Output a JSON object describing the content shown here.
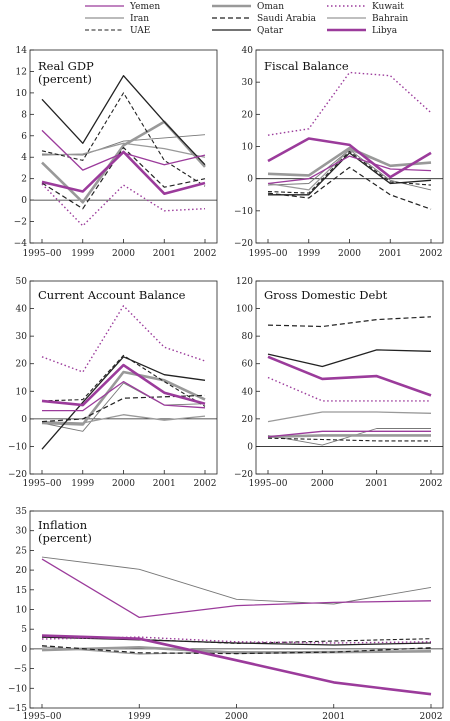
{
  "colors": {
    "yemen": "#9b3b9b",
    "iran": "#777777",
    "uae": "#222222",
    "oman": "#999999",
    "saudi": "#222222",
    "qatar": "#222222",
    "kuwait": "#9b3b9b",
    "bahrain": "#999999",
    "libya": "#9b3b9b"
  },
  "legend": [
    {
      "key": "yemen",
      "label": "Yemen"
    },
    {
      "key": "oman",
      "label": "Oman"
    },
    {
      "key": "kuwait",
      "label": "Kuwait"
    },
    {
      "key": "iran",
      "label": "Iran"
    },
    {
      "key": "saudi",
      "label": "Saudi Arabia"
    },
    {
      "key": "bahrain",
      "label": "Bahrain"
    },
    {
      "key": "uae",
      "label": "UAE"
    },
    {
      "key": "qatar",
      "label": "Qatar"
    },
    {
      "key": "libya",
      "label": "Libya"
    }
  ],
  "chart_data": [
    {
      "type": "line",
      "title": "Real GDP\n(percent)",
      "x": [
        "1995–00",
        "1999",
        "2000",
        "2001",
        "2002"
      ],
      "ylim": [
        -4,
        14
      ],
      "yticks": [
        -4,
        -2,
        0,
        2,
        4,
        6,
        8,
        10,
        12,
        14
      ],
      "series": [
        {
          "name": "Yemen",
          "key": "yemen",
          "values": [
            6.5,
            2.8,
            4.4,
            3.3,
            4.2
          ]
        },
        {
          "name": "Iran",
          "key": "iran",
          "values": [
            4.3,
            4.2,
            5.5,
            5.8,
            6.1
          ]
        },
        {
          "name": "UAE",
          "key": "uae",
          "values": [
            4.6,
            3.7,
            10.0,
            3.7,
            1.3
          ]
        },
        {
          "name": "Oman",
          "key": "oman",
          "values": [
            3.5,
            -0.2,
            5.1,
            7.3,
            3.1
          ]
        },
        {
          "name": "Saudi Arabia",
          "key": "saudi",
          "values": [
            1.6,
            -0.8,
            4.9,
            1.2,
            2.0
          ]
        },
        {
          "name": "Qatar",
          "key": "qatar",
          "values": [
            9.4,
            5.3,
            11.6,
            7.3,
            3.3
          ]
        },
        {
          "name": "Kuwait",
          "key": "kuwait",
          "values": [
            1.5,
            -2.4,
            1.4,
            -1.0,
            -0.8
          ]
        },
        {
          "name": "Bahrain",
          "key": "bahrain",
          "values": [
            4.2,
            4.3,
            5.3,
            4.8,
            4.0
          ]
        },
        {
          "name": "Libya",
          "key": "libya",
          "values": [
            1.7,
            0.8,
            4.5,
            0.6,
            1.6
          ]
        }
      ]
    },
    {
      "type": "line",
      "title": "Fiscal Balance",
      "x": [
        "1995–00",
        "1999",
        "2000",
        "2001",
        "2002"
      ],
      "ylim": [
        -20,
        40
      ],
      "yticks": [
        -20,
        -10,
        0,
        10,
        20,
        30,
        40
      ],
      "series": [
        {
          "name": "Yemen",
          "key": "yemen",
          "values": [
            -1.5,
            0.0,
            7.0,
            3.0,
            2.5
          ]
        },
        {
          "name": "Iran",
          "key": "iran",
          "values": [
            -2.0,
            -1.5,
            9.0,
            -0.5,
            -3.5
          ]
        },
        {
          "name": "UAE",
          "key": "uae",
          "values": [
            -4.0,
            -4.5,
            8.5,
            -1.0,
            -2.0
          ]
        },
        {
          "name": "Oman",
          "key": "oman",
          "values": [
            1.5,
            1.0,
            9.5,
            4.0,
            5.0
          ]
        },
        {
          "name": "Saudi Arabia",
          "key": "saudi",
          "values": [
            -4.5,
            -6.0,
            3.5,
            -5.0,
            -9.5
          ]
        },
        {
          "name": "Qatar",
          "key": "qatar",
          "values": [
            -5.0,
            -5.0,
            8.0,
            -1.5,
            -0.5
          ]
        },
        {
          "name": "Kuwait",
          "key": "kuwait",
          "values": [
            13.5,
            15.5,
            33.0,
            32.0,
            20.5
          ]
        },
        {
          "name": "Bahrain",
          "key": "bahrain",
          "values": [
            -1.5,
            -3.5,
            9.0,
            4.0,
            5.0
          ]
        },
        {
          "name": "Libya",
          "key": "libya",
          "values": [
            5.5,
            12.5,
            10.5,
            0.5,
            8.0
          ]
        }
      ]
    },
    {
      "type": "line",
      "title": "Current Account Balance",
      "x": [
        "1995–00",
        "1999",
        "2000",
        "2001",
        "2002"
      ],
      "ylim": [
        -20,
        50
      ],
      "yticks": [
        -20,
        -10,
        0,
        10,
        20,
        30,
        40,
        50
      ],
      "series": [
        {
          "name": "Yemen",
          "key": "yemen",
          "values": [
            3.0,
            3.0,
            13.5,
            5.0,
            4.0
          ]
        },
        {
          "name": "Iran",
          "key": "iran",
          "values": [
            -1.5,
            -4.5,
            13.0,
            5.0,
            5.5
          ]
        },
        {
          "name": "UAE",
          "key": "uae",
          "values": [
            6.5,
            7.0,
            23.0,
            13.5,
            4.5
          ]
        },
        {
          "name": "Oman",
          "key": "oman",
          "values": [
            -1.5,
            -2.0,
            17.0,
            14.0,
            7.0
          ]
        },
        {
          "name": "Saudi Arabia",
          "key": "saudi",
          "values": [
            -1.0,
            0.0,
            7.5,
            8.0,
            8.5
          ]
        },
        {
          "name": "Qatar",
          "key": "qatar",
          "values": [
            -11.0,
            6.0,
            22.5,
            16.0,
            14.0
          ]
        },
        {
          "name": "Kuwait",
          "key": "kuwait",
          "values": [
            22.5,
            17.0,
            41.0,
            26.0,
            21.0
          ]
        },
        {
          "name": "Bahrain",
          "key": "bahrain",
          "values": [
            -1.0,
            -1.5,
            1.5,
            -0.5,
            1.0
          ]
        },
        {
          "name": "Libya",
          "key": "libya",
          "values": [
            6.5,
            5.0,
            19.5,
            9.5,
            5.5
          ]
        }
      ]
    },
    {
      "type": "line",
      "title": "Gross Domestic Debt",
      "x": [
        "1995–00",
        "2000",
        "2001",
        "2002"
      ],
      "ylim": [
        -20,
        120
      ],
      "yticks": [
        -20,
        0,
        20,
        40,
        60,
        80,
        100,
        120
      ],
      "series": [
        {
          "name": "Yemen",
          "key": "yemen",
          "values": [
            7,
            11,
            11,
            11
          ]
        },
        {
          "name": "Iran",
          "key": "iran",
          "values": [
            8,
            1,
            13,
            13
          ]
        },
        {
          "name": "UAE",
          "key": "uae",
          "values": [
            6,
            5,
            4,
            4
          ]
        },
        {
          "name": "Oman",
          "key": "oman",
          "values": [
            7,
            8,
            8,
            8
          ]
        },
        {
          "name": "Saudi Arabia",
          "key": "saudi",
          "values": [
            88,
            87,
            92,
            94
          ]
        },
        {
          "name": "Qatar",
          "key": "qatar",
          "values": [
            67,
            58,
            70,
            69
          ]
        },
        {
          "name": "Kuwait",
          "key": "kuwait",
          "values": [
            50,
            33,
            33,
            33
          ]
        },
        {
          "name": "Bahrain",
          "key": "bahrain",
          "values": [
            18,
            25,
            25,
            24
          ]
        },
        {
          "name": "Libya",
          "key": "libya",
          "values": [
            65,
            49,
            51,
            37
          ]
        }
      ]
    },
    {
      "type": "line",
      "title": "Inflation\n(percent)",
      "x": [
        "1995–00",
        "1999",
        "2000",
        "2001",
        "2002"
      ],
      "ylim": [
        -15,
        35
      ],
      "yticks": [
        -15,
        -10,
        -5,
        0,
        5,
        10,
        15,
        20,
        25,
        30,
        35
      ],
      "series": [
        {
          "name": "Yemen",
          "key": "yemen",
          "values": [
            22.8,
            8.0,
            11.0,
            11.8,
            12.2
          ]
        },
        {
          "name": "Iran",
          "key": "iran",
          "values": [
            23.3,
            20.2,
            12.6,
            11.4,
            15.6
          ]
        },
        {
          "name": "UAE",
          "key": "uae",
          "values": [
            3.0,
            2.4,
            1.4,
            2.0,
            2.6
          ]
        },
        {
          "name": "Oman",
          "key": "oman",
          "values": [
            -0.3,
            0.4,
            -1.0,
            -0.8,
            -0.6
          ]
        },
        {
          "name": "Saudi Arabia",
          "key": "saudi",
          "values": [
            0.8,
            -1.0,
            -1.2,
            -0.8,
            0.3
          ]
        },
        {
          "name": "Qatar",
          "key": "qatar",
          "values": [
            3.0,
            2.3,
            1.5,
            1.0,
            1.5
          ]
        },
        {
          "name": "Kuwait",
          "key": "kuwait",
          "values": [
            2.5,
            3.0,
            1.8,
            1.5,
            1.8
          ]
        },
        {
          "name": "Bahrain",
          "key": "bahrain",
          "values": [
            0.5,
            -1.3,
            -0.7,
            -0.8,
            -0.5
          ]
        },
        {
          "name": "Libya",
          "key": "libya",
          "values": [
            3.4,
            2.6,
            -2.9,
            -8.5,
            -11.5
          ]
        }
      ]
    }
  ]
}
